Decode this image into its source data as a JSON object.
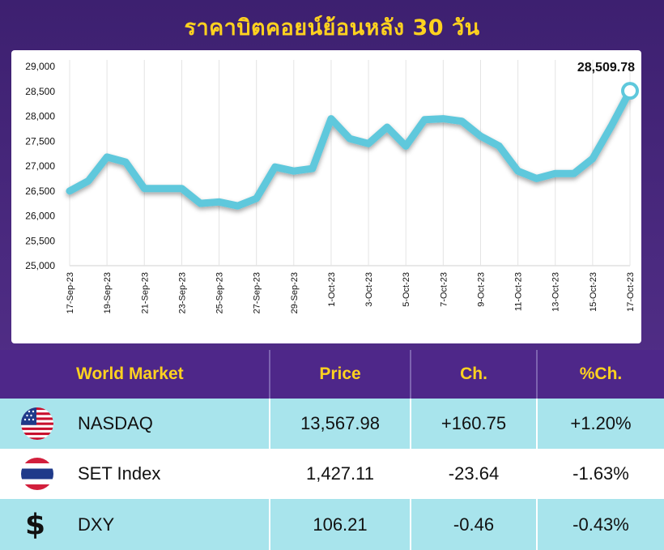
{
  "title": "ราคาบิตคอยน์ย้อนหลัง 30 วัน",
  "chart_data": {
    "type": "line",
    "title": "ราคาบิตคอยน์ย้อนหลัง 30 วัน",
    "ylim": [
      25000,
      29000
    ],
    "yticks": [
      "25,000",
      "25,500",
      "26,000",
      "26,500",
      "27,000",
      "27,500",
      "28,000",
      "28,500",
      "29,000"
    ],
    "ytick_values": [
      25000,
      25500,
      26000,
      26500,
      27000,
      27500,
      28000,
      28500,
      29000
    ],
    "x": [
      "17-Sep-23",
      "18-Sep-23",
      "19-Sep-23",
      "20-Sep-23",
      "21-Sep-23",
      "22-Sep-23",
      "23-Sep-23",
      "24-Sep-23",
      "25-Sep-23",
      "26-Sep-23",
      "27-Sep-23",
      "28-Sep-23",
      "29-Sep-23",
      "30-Sep-23",
      "1-Oct-23",
      "2-Oct-23",
      "3-Oct-23",
      "4-Oct-23",
      "5-Oct-23",
      "6-Oct-23",
      "7-Oct-23",
      "8-Oct-23",
      "9-Oct-23",
      "10-Oct-23",
      "11-Oct-23",
      "12-Oct-23",
      "13-Oct-23",
      "14-Oct-23",
      "15-Oct-23",
      "16-Oct-23",
      "17-Oct-23"
    ],
    "xtick_labels": [
      "17-Sep-23",
      "19-Sep-23",
      "21-Sep-23",
      "23-Sep-23",
      "25-Sep-23",
      "27-Sep-23",
      "29-Sep-23",
      "1-Oct-23",
      "3-Oct-23",
      "5-Oct-23",
      "7-Oct-23",
      "9-Oct-23",
      "11-Oct-23",
      "13-Oct-23",
      "15-Oct-23",
      "17-Oct-23"
    ],
    "series": [
      {
        "values": [
          26500,
          26700,
          27180,
          27080,
          26550,
          26550,
          26550,
          26250,
          26280,
          26200,
          26350,
          26980,
          26900,
          26950,
          27950,
          27550,
          27450,
          27780,
          27400,
          27930,
          27950,
          27900,
          27600,
          27400,
          26900,
          26750,
          26850,
          26850,
          27150,
          27800,
          28509.78
        ]
      }
    ],
    "last_label": "28,509.78",
    "grid": "vertical",
    "line_color": "#5ec8dc"
  },
  "table": {
    "headers": [
      "World Market",
      "Price",
      "Ch.",
      "%Ch."
    ],
    "rows": [
      {
        "icon": "us-flag-icon",
        "name": "NASDAQ",
        "price": "13,567.98",
        "ch": "+160.75",
        "pct": "+1.20%"
      },
      {
        "icon": "thai-flag-icon",
        "name": "SET Index",
        "price": "1,427.11",
        "ch": "-23.64",
        "pct": "-1.63%"
      },
      {
        "icon": "dollar-icon",
        "symbol": "$",
        "name": "DXY",
        "price": "106.21",
        "ch": "-0.46",
        "pct": "-0.43%"
      }
    ]
  },
  "colors": {
    "header_bg": "#4e2789",
    "title": "#ffd21f",
    "row_alt": "#a8e4ec",
    "line": "#5ec8dc"
  }
}
